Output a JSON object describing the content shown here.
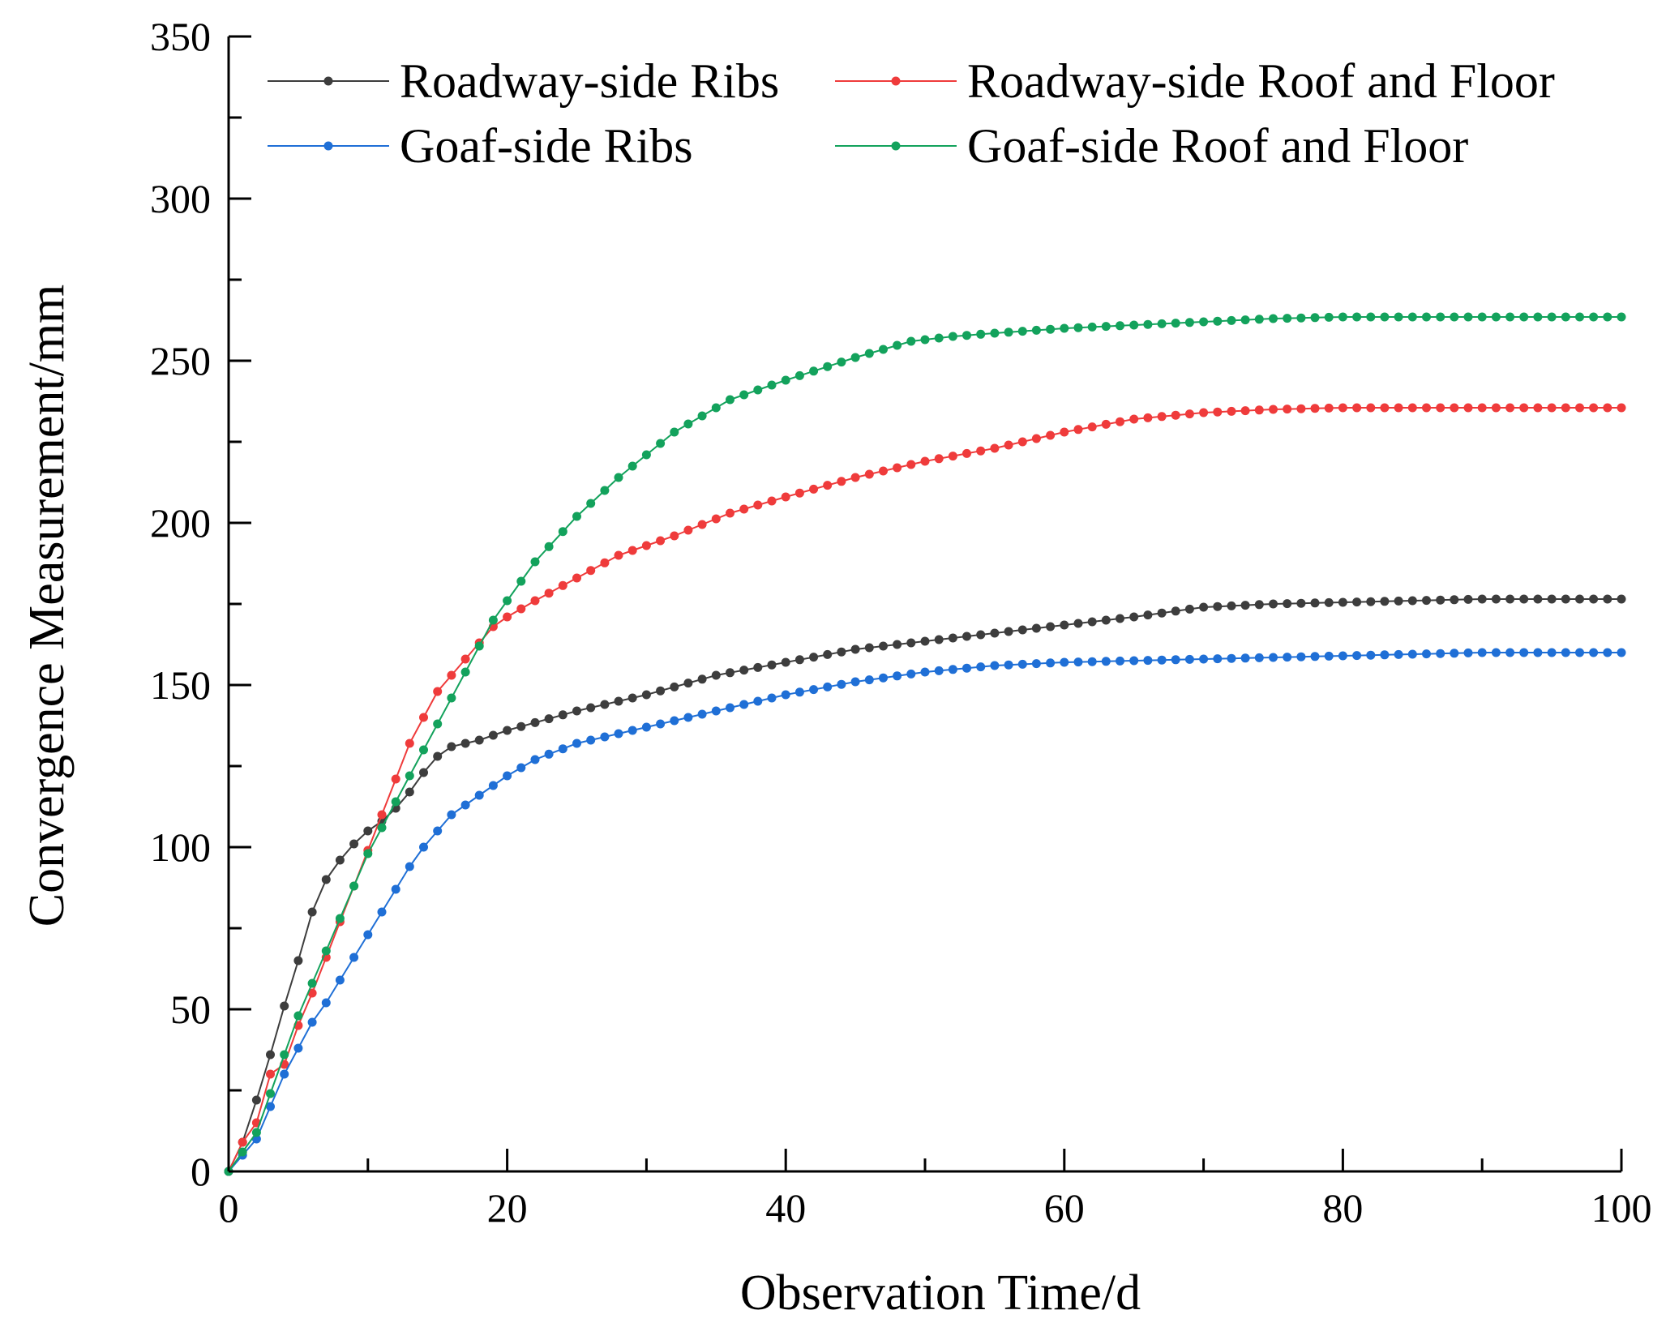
{
  "chart_data": {
    "type": "line",
    "title": "",
    "xlabel": "Observation Time/d",
    "ylabel": "Convergence Measurement/mm",
    "xlim": [
      0,
      100
    ],
    "ylim": [
      0,
      350
    ],
    "xticks": [
      0,
      20,
      40,
      60,
      80,
      100
    ],
    "yticks": [
      0,
      50,
      100,
      150,
      200,
      250,
      300,
      350
    ],
    "xtick_labels": [
      "0",
      "20",
      "40",
      "60",
      "80",
      "100"
    ],
    "ytick_labels": [
      "0",
      "50",
      "100",
      "150",
      "200",
      "250",
      "300",
      "350"
    ],
    "grid": false,
    "legend_position": "top",
    "series": [
      {
        "name": "Roadway-side Ribs",
        "color": "#3d3d3d",
        "anchors": [
          [
            0,
            0
          ],
          [
            1,
            9
          ],
          [
            2,
            22
          ],
          [
            3,
            36
          ],
          [
            4,
            51
          ],
          [
            5,
            65
          ],
          [
            6,
            80
          ],
          [
            7,
            90
          ],
          [
            8,
            96
          ],
          [
            9,
            101
          ],
          [
            10,
            105
          ],
          [
            11,
            108
          ],
          [
            12,
            112
          ],
          [
            13,
            117
          ],
          [
            14,
            123
          ],
          [
            15,
            128
          ],
          [
            16,
            131
          ],
          [
            18,
            133
          ],
          [
            20,
            136
          ],
          [
            25,
            142
          ],
          [
            30,
            147
          ],
          [
            35,
            153
          ],
          [
            40,
            157
          ],
          [
            45,
            161
          ],
          [
            50,
            163.5
          ],
          [
            55,
            166
          ],
          [
            60,
            168.5
          ],
          [
            65,
            171
          ],
          [
            70,
            174
          ],
          [
            75,
            175
          ],
          [
            80,
            175.5
          ],
          [
            85,
            176
          ],
          [
            90,
            176.5
          ],
          [
            100,
            176.5
          ]
        ]
      },
      {
        "name": "Roadway-side Roof and Floor",
        "color": "#ef3b3b",
        "anchors": [
          [
            0,
            0
          ],
          [
            1,
            9
          ],
          [
            2,
            15
          ],
          [
            3,
            30
          ],
          [
            4,
            33
          ],
          [
            5,
            45
          ],
          [
            6,
            55
          ],
          [
            7,
            66
          ],
          [
            8,
            77
          ],
          [
            9,
            88
          ],
          [
            10,
            99
          ],
          [
            11,
            110
          ],
          [
            12,
            121
          ],
          [
            13,
            132
          ],
          [
            14,
            140
          ],
          [
            15,
            148
          ],
          [
            16,
            153
          ],
          [
            17,
            158
          ],
          [
            18,
            163
          ],
          [
            19,
            168
          ],
          [
            20,
            171
          ],
          [
            22,
            176
          ],
          [
            25,
            183
          ],
          [
            28,
            190
          ],
          [
            32,
            196
          ],
          [
            36,
            203
          ],
          [
            40,
            208
          ],
          [
            45,
            214
          ],
          [
            50,
            219
          ],
          [
            55,
            223
          ],
          [
            60,
            228
          ],
          [
            65,
            232
          ],
          [
            70,
            234
          ],
          [
            75,
            235
          ],
          [
            80,
            235.5
          ],
          [
            100,
            235.5
          ]
        ]
      },
      {
        "name": "Goaf-side Ribs",
        "color": "#1f6fd6",
        "anchors": [
          [
            0,
            0
          ],
          [
            1,
            5
          ],
          [
            2,
            10
          ],
          [
            3,
            20
          ],
          [
            4,
            30
          ],
          [
            5,
            38
          ],
          [
            6,
            46
          ],
          [
            7,
            52
          ],
          [
            8,
            59
          ],
          [
            9,
            66
          ],
          [
            10,
            73
          ],
          [
            11,
            80
          ],
          [
            12,
            87
          ],
          [
            13,
            94
          ],
          [
            14,
            100
          ],
          [
            15,
            105
          ],
          [
            16,
            110
          ],
          [
            17,
            113
          ],
          [
            18,
            116
          ],
          [
            19,
            119
          ],
          [
            20,
            122
          ],
          [
            22,
            127
          ],
          [
            25,
            132
          ],
          [
            28,
            135
          ],
          [
            31,
            138
          ],
          [
            35,
            142
          ],
          [
            40,
            147
          ],
          [
            45,
            151
          ],
          [
            50,
            154
          ],
          [
            55,
            156
          ],
          [
            60,
            157
          ],
          [
            65,
            157.5
          ],
          [
            70,
            158
          ],
          [
            75,
            158.5
          ],
          [
            80,
            159
          ],
          [
            85,
            159.5
          ],
          [
            90,
            160
          ],
          [
            100,
            160
          ]
        ]
      },
      {
        "name": "Goaf-side Roof and Floor",
        "color": "#13a25c",
        "anchors": [
          [
            0,
            0
          ],
          [
            1,
            6
          ],
          [
            2,
            12
          ],
          [
            3,
            24
          ],
          [
            4,
            36
          ],
          [
            5,
            48
          ],
          [
            6,
            58
          ],
          [
            7,
            68
          ],
          [
            8,
            78
          ],
          [
            9,
            88
          ],
          [
            10,
            98
          ],
          [
            11,
            106
          ],
          [
            12,
            114
          ],
          [
            13,
            122
          ],
          [
            14,
            130
          ],
          [
            15,
            138
          ],
          [
            16,
            146
          ],
          [
            17,
            154
          ],
          [
            18,
            162
          ],
          [
            19,
            170
          ],
          [
            20,
            176
          ],
          [
            22,
            188
          ],
          [
            25,
            202
          ],
          [
            28,
            214
          ],
          [
            32,
            228
          ],
          [
            36,
            238
          ],
          [
            40,
            244
          ],
          [
            45,
            251
          ],
          [
            49,
            256
          ],
          [
            52,
            257.5
          ],
          [
            55,
            258.5
          ],
          [
            60,
            260
          ],
          [
            65,
            261
          ],
          [
            70,
            262
          ],
          [
            75,
            263
          ],
          [
            80,
            263.5
          ],
          [
            100,
            263.5
          ]
        ]
      }
    ]
  }
}
